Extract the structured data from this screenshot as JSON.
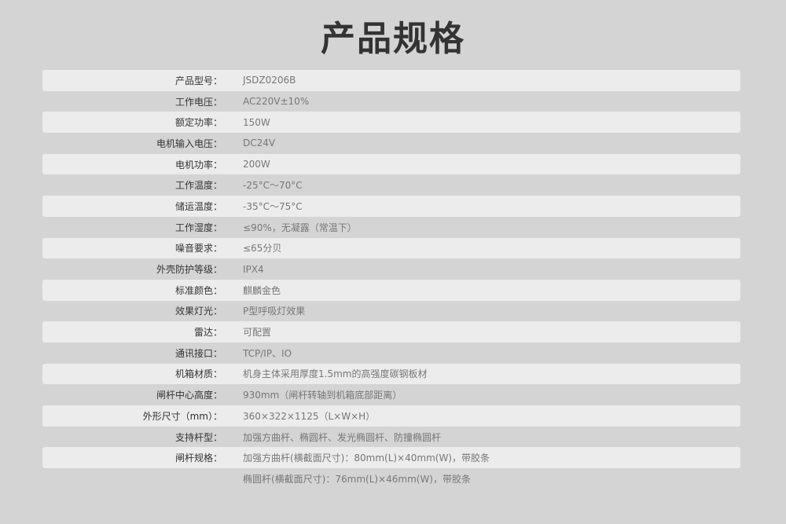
{
  "title": "产品规格",
  "rows": [
    {
      "label": "产品型号：",
      "value": "JSDZ0206B"
    },
    {
      "label": "工作电压：",
      "value": "AC220V±10%"
    },
    {
      "label": "额定功率：",
      "value": "150W"
    },
    {
      "label": "电机输入电压：",
      "value": "DC24V"
    },
    {
      "label": "电机功率：",
      "value": "200W"
    },
    {
      "label": "工作温度：",
      "value": "-25°C～70°C"
    },
    {
      "label": "储运温度：",
      "value": "-35°C～75°C"
    },
    {
      "label": "工作湿度：",
      "value": "≤90%，无凝露（常温下）"
    },
    {
      "label": "噪音要求：",
      "value": "≤65分贝"
    },
    {
      "label": "外壳防护等级：",
      "value": "IPX4"
    },
    {
      "label": "标准颜色：",
      "value": "麒麟金色"
    },
    {
      "label": "效果灯光：",
      "value": "P型呼吸灯效果"
    },
    {
      "label": "雷达：",
      "value": "可配置"
    },
    {
      "label": "通讯接口：",
      "value": "TCP/IP、IO"
    },
    {
      "label": "机箱材质：",
      "value": "机身主体采用厚度1.5mm的高强度碳钢板材"
    },
    {
      "label": "闸杆中心高度：",
      "value": "930mm（闸杆转轴到机箱底部距离）"
    },
    {
      "label": "外形尺寸（mm）：",
      "value": "360×322×1125（L×W×H）"
    },
    {
      "label": "支持杆型：",
      "value": "加强方曲杆、椭圆杆、发光椭圆杆、防撞椭圆杆"
    },
    {
      "label": "闸杆规格：",
      "value": "加强方曲杆(横截面尺寸)：80mm(L)×40mm(W)，带胶条"
    },
    {
      "label": "",
      "value": "椭圆杆(横截面尺寸)：76mm(L)×46mm(W)，带胶条"
    }
  ]
}
